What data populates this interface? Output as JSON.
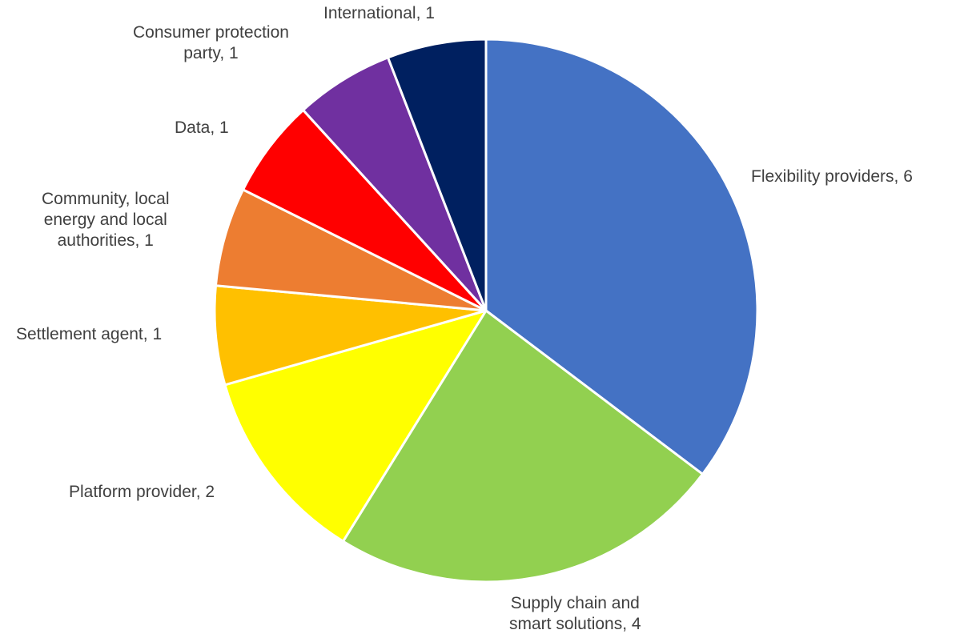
{
  "chart_data": {
    "type": "pie",
    "title": "",
    "slices": [
      {
        "label_lines": [
          "Flexibility providers, 6"
        ],
        "category": "Flexibility providers",
        "value": 6,
        "color": "#4472C4"
      },
      {
        "label_lines": [
          "Supply chain and",
          "smart solutions, 4"
        ],
        "category": "Supply chain and smart solutions",
        "value": 4,
        "color": "#92D050"
      },
      {
        "label_lines": [
          "Platform provider, 2"
        ],
        "category": "Platform provider",
        "value": 2,
        "color": "#FFFF00"
      },
      {
        "label_lines": [
          "Settlement agent, 1"
        ],
        "category": "Settlement agent",
        "value": 1,
        "color": "#FFC000"
      },
      {
        "label_lines": [
          "Community, local",
          "energy and local",
          "authorities, 1"
        ],
        "category": "Community, local energy and local authorities",
        "value": 1,
        "color": "#ED7D31"
      },
      {
        "label_lines": [
          "Data, 1"
        ],
        "category": "Data",
        "value": 1,
        "color": "#FF0000"
      },
      {
        "label_lines": [
          "Consumer protection",
          "party, 1"
        ],
        "category": "Consumer protection party",
        "value": 1,
        "color": "#7030A0"
      },
      {
        "label_lines": [
          "International, 1"
        ],
        "category": "International",
        "value": 1,
        "color": "#002060"
      }
    ]
  }
}
